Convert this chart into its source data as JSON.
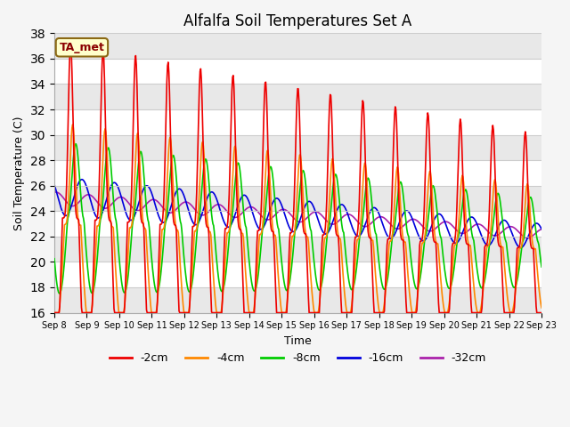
{
  "title": "Alfalfa Soil Temperatures Set A",
  "xlabel": "Time",
  "ylabel": "Soil Temperature (C)",
  "ylim": [
    16,
    38
  ],
  "yticks": [
    16,
    18,
    20,
    22,
    24,
    26,
    28,
    30,
    32,
    34,
    36,
    38
  ],
  "annotation": "TA_met",
  "line_colors": {
    "-2cm": "#ee0000",
    "-4cm": "#ff8800",
    "-8cm": "#00cc00",
    "-16cm": "#0000dd",
    "-32cm": "#aa22aa"
  },
  "legend_order": [
    "-2cm",
    "-4cm",
    "-8cm",
    "-16cm",
    "-32cm"
  ],
  "lw": 1.2,
  "fig_facecolor": "#f5f5f5",
  "ax_facecolor": "#ffffff",
  "grid_color": "#dddddd",
  "band_color": "#e8e8e8"
}
